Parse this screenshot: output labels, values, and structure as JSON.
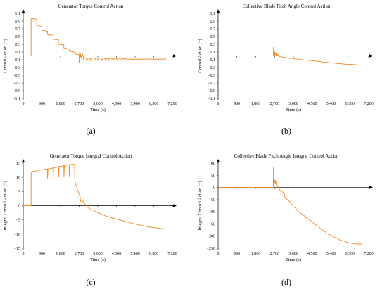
{
  "chart_data": [
    {
      "type": "line",
      "panel_label": "(a)",
      "title": "Generator Torque Control Action",
      "xlabel": "Time (s)",
      "ylabel": "Control Action (−)",
      "xlim": [
        0,
        7200
      ],
      "ylim": [
        -1.1,
        1.1
      ],
      "xticks": [
        0,
        900,
        1800,
        2700,
        3600,
        4500,
        5400,
        6300,
        7200
      ],
      "xtick_labels": [
        "0",
        "900",
        "1,800",
        "2,700",
        "3,600",
        "4,500",
        "5,400",
        "6,300",
        "7,200"
      ],
      "yticks": [
        -1.1,
        -0.9,
        -0.7,
        -0.5,
        -0.3,
        -0.1,
        0.1,
        0.3,
        0.5,
        0.7,
        0.9,
        1.1
      ],
      "ytick_labels": [
        "−1.1",
        "−0.9",
        "−0.7",
        "−0.5",
        "−0.3",
        "−0.1",
        "0.1",
        "0.3",
        "0.5",
        "0.7",
        "0.9",
        "1.1"
      ],
      "color": "#f08a24",
      "series": [
        {
          "x": [
            0,
            380,
            380,
            390,
            390,
            650,
            650,
            660,
            660,
            900,
            900,
            910,
            910,
            1170,
            1170,
            1180,
            1180,
            1440,
            1440,
            1450,
            1450,
            1700,
            1700,
            1710,
            1710,
            1960,
            1960,
            1970,
            1970,
            2220,
            2220,
            2230,
            2230,
            2480,
            2480,
            2490,
            2490,
            2700,
            2700,
            2720,
            2760,
            2760,
            2800,
            2850,
            2900,
            2900,
            2960,
            3050,
            3060,
            3140,
            3230,
            3240,
            3320,
            3410,
            3420,
            3500,
            3590,
            3600,
            3680,
            3770,
            3780,
            3860,
            3950,
            3960,
            4040,
            4130,
            4140,
            4220,
            4310,
            4320,
            4400,
            4490,
            4500,
            4580,
            4670,
            4680,
            4760,
            4850,
            4860,
            4940,
            5030,
            5040,
            5120,
            5210,
            5220,
            5300,
            5390,
            5400,
            5480,
            5570,
            5580,
            5660,
            5750,
            5760,
            5840,
            5930,
            5940,
            6020,
            6110,
            6120,
            6200,
            6290,
            6300,
            6380,
            6470,
            6480,
            6560,
            6650,
            6660,
            6740,
            6830,
            6840,
            6900
          ],
          "y": [
            0,
            0,
            0.93,
            0.97,
            0.97,
            0.95,
            0.83,
            0.78,
            0.78,
            0.76,
            0.7,
            0.66,
            0.66,
            0.64,
            0.58,
            0.55,
            0.55,
            0.53,
            0.48,
            0.43,
            0.43,
            0.41,
            0.33,
            0.3,
            0.3,
            0.28,
            0.22,
            0.2,
            0.2,
            0.18,
            0.14,
            0.12,
            0.12,
            0.1,
            0.06,
            0.05,
            0.05,
            0.03,
            -0.18,
            0.1,
            -0.04,
            0.06,
            -0.03,
            0.05,
            -0.02,
            -0.1,
            -0.05,
            -0.05,
            -0.14,
            -0.06,
            -0.06,
            -0.13,
            -0.06,
            -0.06,
            -0.13,
            -0.06,
            -0.06,
            -0.12,
            -0.06,
            -0.06,
            -0.12,
            -0.06,
            -0.07,
            -0.12,
            -0.07,
            -0.07,
            -0.12,
            -0.07,
            -0.07,
            -0.12,
            -0.07,
            -0.07,
            -0.11,
            -0.07,
            -0.07,
            -0.11,
            -0.07,
            -0.07,
            -0.11,
            -0.07,
            -0.08,
            -0.11,
            -0.08,
            -0.08,
            -0.11,
            -0.08,
            -0.08,
            -0.11,
            -0.08,
            -0.08,
            -0.11,
            -0.08,
            -0.08,
            -0.1,
            -0.08,
            -0.08,
            -0.1,
            -0.08,
            -0.08,
            -0.1,
            -0.08,
            -0.08,
            -0.1,
            -0.08,
            -0.08,
            -0.1,
            -0.08,
            -0.08,
            -0.1,
            -0.08,
            -0.08,
            -0.09,
            -0.08
          ]
        }
      ]
    },
    {
      "type": "line",
      "panel_label": "(b)",
      "title": "Collective Blade Pitch Angle Control Action",
      "xlabel": "Time (s)",
      "ylabel": "Control Action (−)",
      "xlim": [
        0,
        7200
      ],
      "ylim": [
        -1.1,
        1.1
      ],
      "xticks": [
        0,
        900,
        1800,
        2700,
        3600,
        4500,
        5400,
        6300,
        7200
      ],
      "xtick_labels": [
        "0",
        "900",
        "1,800",
        "2,700",
        "3,600",
        "4,500",
        "5,400",
        "6,300",
        "7,200"
      ],
      "yticks": [
        -1.1,
        -0.9,
        -0.7,
        -0.5,
        -0.3,
        -0.1,
        0.1,
        0.3,
        0.5,
        0.7,
        0.9,
        1.1
      ],
      "ytick_labels": [
        "−1.1",
        "−0.9",
        "−0.7",
        "−0.5",
        "−0.3",
        "−0.1",
        "0.1",
        "0.3",
        "0.5",
        "0.7",
        "0.9",
        "1.1"
      ],
      "color": "#f08a24",
      "series": [
        {
          "x": [
            0,
            2640,
            2650,
            2660,
            2680,
            2700,
            2720,
            2740,
            2760,
            2780,
            2800,
            2830,
            2860,
            2880,
            2900,
            2930,
            2960,
            3000,
            3050,
            3100,
            3150,
            3200,
            3300,
            3400,
            3500,
            3600,
            3700,
            3800,
            3900,
            4000,
            4200,
            4400,
            4600,
            4800,
            5000,
            5200,
            5400,
            5600,
            5800,
            6000,
            6200,
            6400,
            6600,
            6800,
            6950
          ],
          "y": [
            0,
            0,
            0.22,
            0.02,
            0.15,
            0.0,
            0.1,
            0.03,
            0.07,
            0.0,
            0.06,
            0.0,
            0.04,
            -0.01,
            -0.01,
            -0.02,
            -0.02,
            -0.02,
            -0.03,
            -0.03,
            -0.04,
            -0.04,
            -0.05,
            -0.06,
            -0.06,
            -0.07,
            -0.08,
            -0.08,
            -0.09,
            -0.1,
            -0.11,
            -0.12,
            -0.13,
            -0.14,
            -0.16,
            -0.17,
            -0.18,
            -0.19,
            -0.2,
            -0.21,
            -0.22,
            -0.22,
            -0.23,
            -0.24,
            -0.24
          ]
        }
      ]
    },
    {
      "type": "line",
      "panel_label": "(c)",
      "title": "Generator Torque Integral Control Action",
      "xlabel": "Time (s)",
      "ylabel": "Integral Control Action (−)",
      "xlim": [
        0,
        7200
      ],
      "ylim": [
        -15,
        15
      ],
      "xticks": [
        0,
        900,
        1800,
        2700,
        3600,
        4500,
        5400,
        6300,
        7200
      ],
      "xtick_labels": [
        "0",
        "900",
        "1,800",
        "2,700",
        "3,600",
        "4,500",
        "5,400",
        "6,300",
        "7,200"
      ],
      "yticks": [
        -15,
        -10,
        -5,
        0,
        5,
        10,
        15
      ],
      "ytick_labels": [
        "−15",
        "−10",
        "−5",
        "0",
        "5",
        "10",
        "15"
      ],
      "color": "#f08a24",
      "series": [
        {
          "x": [
            0,
            380,
            380,
            420,
            600,
            650,
            700,
            900,
            950,
            1000,
            1150,
            1170,
            1175,
            1200,
            1400,
            1440,
            1445,
            1470,
            1650,
            1700,
            1705,
            1730,
            1900,
            1960,
            1965,
            1990,
            2180,
            2220,
            2225,
            2260,
            2450,
            2480,
            2490,
            2530,
            2560,
            2580,
            2600,
            2620,
            2650,
            2680,
            2700,
            2750,
            2760,
            2800,
            2850,
            2900,
            2950,
            3000,
            3100,
            3200,
            3300,
            3400,
            3500,
            3600,
            3700,
            3800,
            3900,
            4000,
            4200,
            4400,
            4600,
            4800,
            5000,
            5200,
            5400,
            5600,
            5800,
            6000,
            6200,
            6400,
            6600,
            6800,
            6950
          ],
          "y": [
            0,
            0,
            11.8,
            12.0,
            12.2,
            12.4,
            12.5,
            12.6,
            12.7,
            12.8,
            12.9,
            13.0,
            9.6,
            13.0,
            13.2,
            13.4,
            9.8,
            13.4,
            13.6,
            13.8,
            10.0,
            13.8,
            14.0,
            14.2,
            10.3,
            14.2,
            14.3,
            14.5,
            10.5,
            14.5,
            14.6,
            14.6,
            8.5,
            7.8,
            7.0,
            6.5,
            6.0,
            5.5,
            5.0,
            4.5,
            4.2,
            3.0,
            1.5,
            2.0,
            1.3,
            1.6,
            0.8,
            0.4,
            -0.5,
            -1.0,
            -1.4,
            -1.7,
            -2.1,
            -2.5,
            -2.8,
            -3.1,
            -3.4,
            -3.7,
            -4.1,
            -4.5,
            -4.9,
            -5.3,
            -5.7,
            -6.1,
            -6.5,
            -6.8,
            -7.1,
            -7.4,
            -7.6,
            -7.8,
            -8.0,
            -8.1,
            -8.2
          ]
        }
      ]
    },
    {
      "type": "line",
      "panel_label": "(d)",
      "title": "Collective Blade Pitch Angle Integral Control Action",
      "xlabel": "Time (s)",
      "ylabel": "Integral Control Action (−)",
      "xlim": [
        0,
        7200
      ],
      "ylim": [
        -250,
        100
      ],
      "xticks": [
        0,
        900,
        1800,
        2700,
        3600,
        4500,
        5400,
        6300,
        7200
      ],
      "xtick_labels": [
        "0",
        "900",
        "1,800",
        "2,700",
        "3,600",
        "4,500",
        "5,400",
        "6,300",
        "7,200"
      ],
      "yticks": [
        -250,
        -200,
        -150,
        -100,
        -50,
        0,
        50,
        100
      ],
      "ytick_labels": [
        "−250",
        "−200",
        "−150",
        "−100",
        "−50",
        "0",
        "50",
        "100"
      ],
      "color": "#f08a24",
      "series": [
        {
          "x": [
            0,
            2640,
            2645,
            2660,
            2680,
            2700,
            2720,
            2740,
            2760,
            2780,
            2800,
            2830,
            2860,
            2880,
            2900,
            2950,
            3000,
            3050,
            3100,
            3150,
            3200,
            3250,
            3300,
            3400,
            3450,
            3500,
            3550,
            3600,
            3700,
            3800,
            3850,
            3900,
            4000,
            4100,
            4200,
            4250,
            4300,
            4400,
            4500,
            4550,
            4600,
            4700,
            4800,
            4850,
            4900,
            5000,
            5100,
            5150,
            5200,
            5300,
            5400,
            5450,
            5500,
            5600,
            5700,
            5750,
            5800,
            5900,
            6000,
            6050,
            6100,
            6200,
            6300,
            6350,
            6400,
            6500,
            6600,
            6650,
            6700,
            6800,
            6900
          ],
          "y": [
            0,
            0,
            85,
            25,
            40,
            20,
            30,
            15,
            25,
            10,
            12,
            5,
            8,
            2,
            -5,
            -10,
            -15,
            -15,
            -20,
            -20,
            -40,
            -40,
            -50,
            -55,
            -60,
            -70,
            -70,
            -80,
            -85,
            -95,
            -100,
            -100,
            -110,
            -115,
            -125,
            -125,
            -130,
            -135,
            -140,
            -145,
            -150,
            -155,
            -160,
            -165,
            -170,
            -175,
            -180,
            -185,
            -190,
            -193,
            -196,
            -200,
            -203,
            -206,
            -209,
            -212,
            -215,
            -218,
            -220,
            -222,
            -224,
            -226,
            -228,
            -229,
            -230,
            -231,
            -232,
            -232,
            -233,
            -233,
            -233
          ]
        }
      ]
    }
  ]
}
